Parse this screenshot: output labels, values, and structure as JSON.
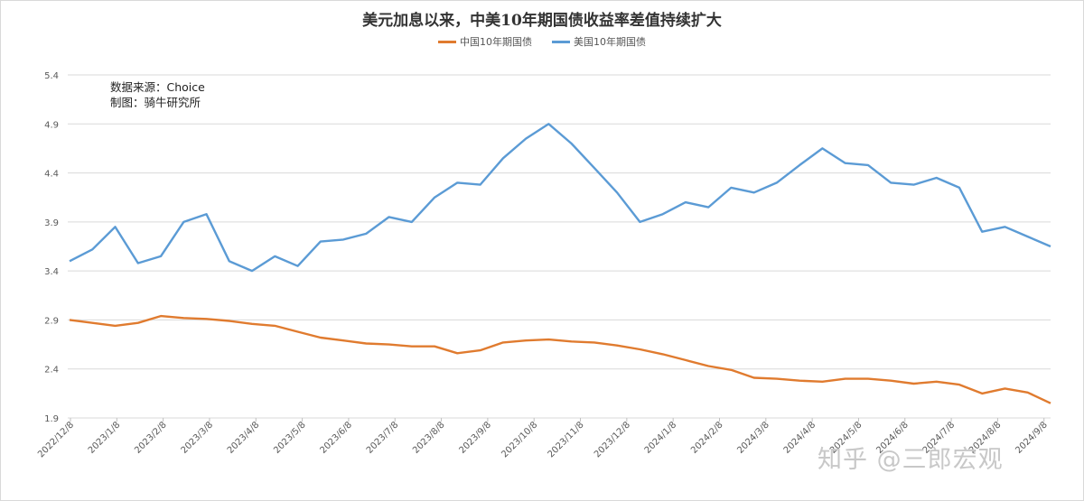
{
  "title": "美元加息以来，中美10年期国债收益率差值持续扩大",
  "legend": [
    {
      "label": "中国10年期国债",
      "color": "#e07b2f"
    },
    {
      "label": "美国10年期国债",
      "color": "#5b9bd5"
    }
  ],
  "note": {
    "source": "数据来源：Choice",
    "maker": "制图：骑牛研究所"
  },
  "watermark": "知乎 @三郎宏观",
  "chart_data": {
    "type": "line",
    "title": "美元加息以来，中美10年期国债收益率差值持续扩大",
    "xlabel": "",
    "ylabel": "",
    "ylim": [
      1.9,
      5.4
    ],
    "yticks": [
      "5.4",
      "4.9",
      "4.4",
      "3.9",
      "3.4",
      "2.9",
      "2.4",
      "1.9"
    ],
    "xticks": [
      "2022/12/8",
      "2023/1/8",
      "2023/2/8",
      "2023/3/8",
      "2023/4/8",
      "2023/5/8",
      "2023/6/8",
      "2023/7/8",
      "2023/8/8",
      "2023/9/8",
      "2023/10/8",
      "2023/11/8",
      "2023/12/8",
      "2024/1/8",
      "2024/2/8",
      "2024/3/8",
      "2024/4/8",
      "2024/5/8",
      "2024/6/8",
      "2024/7/8",
      "2024/8/8",
      "2024/9/8"
    ],
    "grid": true,
    "legend_position": "top",
    "x": [
      "2022/12/8",
      "2022/12/23",
      "2023/1/8",
      "2023/1/23",
      "2023/2/8",
      "2023/2/23",
      "2023/3/8",
      "2023/3/23",
      "2023/4/8",
      "2023/4/23",
      "2023/5/8",
      "2023/5/23",
      "2023/6/8",
      "2023/6/23",
      "2023/7/8",
      "2023/7/23",
      "2023/8/8",
      "2023/8/23",
      "2023/9/8",
      "2023/9/23",
      "2023/10/8",
      "2023/10/23",
      "2023/11/8",
      "2023/11/23",
      "2023/12/8",
      "2023/12/23",
      "2024/1/8",
      "2024/1/23",
      "2024/2/8",
      "2024/2/23",
      "2024/3/8",
      "2024/3/23",
      "2024/4/8",
      "2024/4/23",
      "2024/5/8",
      "2024/5/23",
      "2024/6/8",
      "2024/6/23",
      "2024/7/8",
      "2024/7/23",
      "2024/8/8",
      "2024/8/23",
      "2024/9/8",
      "2024/9/18"
    ],
    "series": [
      {
        "name": "中国10年期国债",
        "color": "#e07b2f",
        "values": [
          2.9,
          2.87,
          2.84,
          2.87,
          2.94,
          2.92,
          2.91,
          2.89,
          2.86,
          2.84,
          2.78,
          2.72,
          2.69,
          2.66,
          2.65,
          2.63,
          2.63,
          2.56,
          2.59,
          2.67,
          2.69,
          2.7,
          2.68,
          2.67,
          2.64,
          2.6,
          2.55,
          2.49,
          2.43,
          2.39,
          2.31,
          2.3,
          2.28,
          2.27,
          2.3,
          2.3,
          2.28,
          2.25,
          2.27,
          2.24,
          2.15,
          2.2,
          2.16,
          2.05
        ]
      },
      {
        "name": "美国10年期国债",
        "color": "#5b9bd5",
        "values": [
          3.5,
          3.62,
          3.85,
          3.48,
          3.55,
          3.9,
          3.98,
          3.5,
          3.4,
          3.55,
          3.45,
          3.7,
          3.72,
          3.78,
          3.95,
          3.9,
          4.15,
          4.3,
          4.28,
          4.55,
          4.75,
          4.9,
          4.7,
          4.45,
          4.2,
          3.9,
          3.98,
          4.1,
          4.05,
          4.25,
          4.2,
          4.3,
          4.48,
          4.65,
          4.5,
          4.48,
          4.3,
          4.28,
          4.35,
          4.25,
          3.8,
          3.85,
          3.75,
          3.65
        ]
      }
    ]
  }
}
